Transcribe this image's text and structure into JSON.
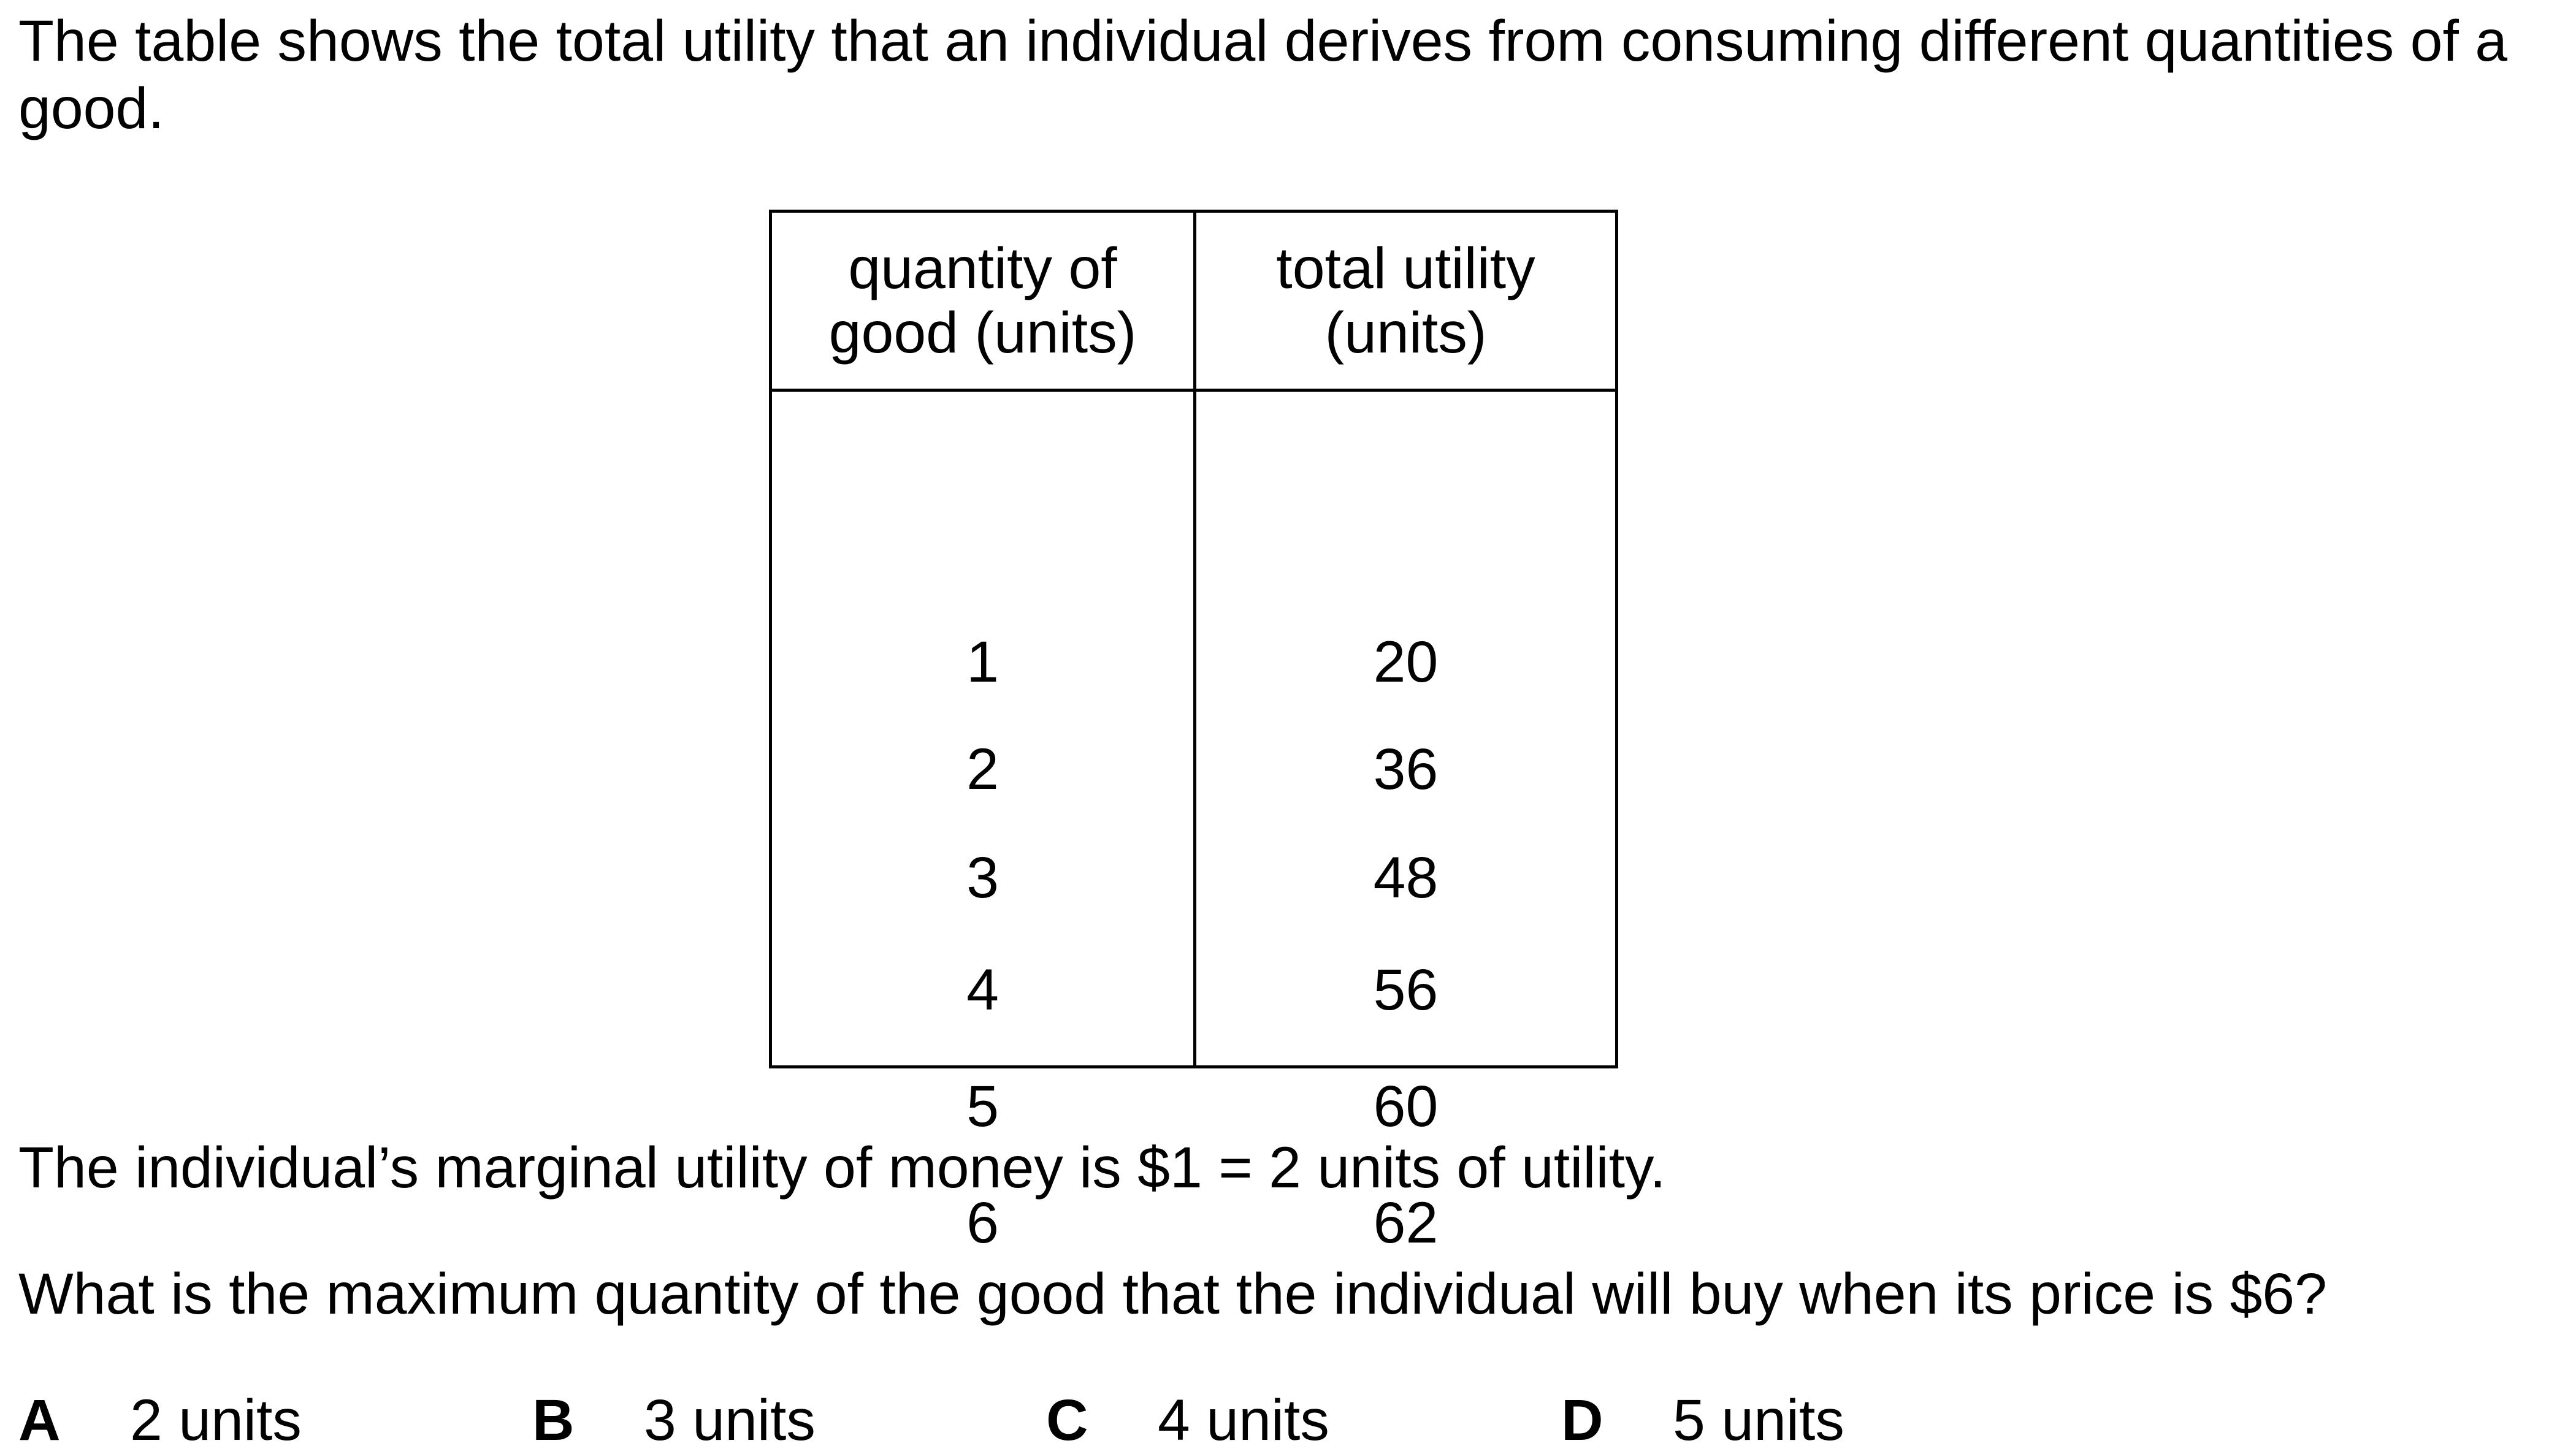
{
  "intro": {
    "line1": "The table shows the total utility that an individual derives from consuming different quantities of a",
    "line2": "good."
  },
  "table": {
    "headers": [
      [
        "quantity of",
        "good (units)"
      ],
      [
        "total utility",
        "(units)"
      ]
    ],
    "rows": [
      [
        "1",
        "20"
      ],
      [
        "2",
        "36"
      ],
      [
        "3",
        "48"
      ],
      [
        "4",
        "56"
      ],
      [
        "5",
        "60"
      ],
      [
        "6",
        "62"
      ]
    ]
  },
  "statement": "The individual’s marginal utility of money is $1 = 2 units of utility.",
  "question": "What is the maximum quantity of the good that the individual will buy when its price is $6?",
  "options": [
    {
      "letter": "A",
      "text": "2 units"
    },
    {
      "letter": "B",
      "text": "3 units"
    },
    {
      "letter": "C",
      "text": "4 units"
    },
    {
      "letter": "D",
      "text": "5 units"
    }
  ]
}
